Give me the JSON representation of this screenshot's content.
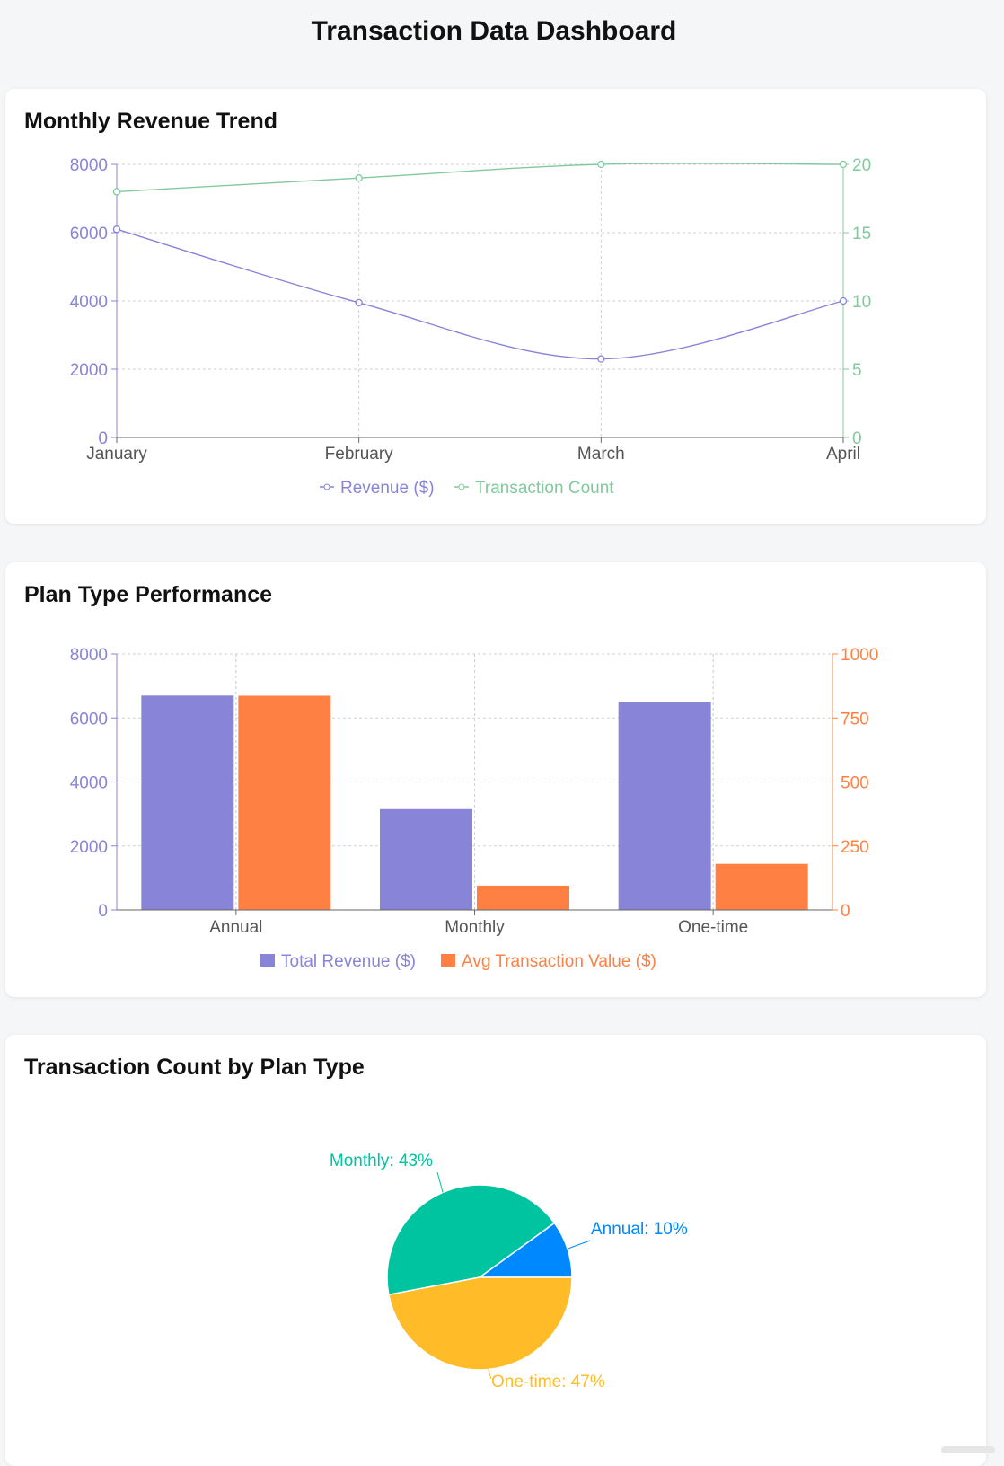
{
  "page": {
    "title": "Transaction Data Dashboard"
  },
  "colors": {
    "revenue": "#8884d8",
    "count": "#82ca9d",
    "avg": "#ff8042",
    "pie": [
      "#0088fe",
      "#00c49f",
      "#ffbb28"
    ]
  },
  "charts": {
    "trend": {
      "title": "Monthly Revenue Trend"
    },
    "plan": {
      "title": "Plan Type Performance"
    },
    "pie": {
      "title": "Transaction Count by Plan Type"
    }
  },
  "chart_data": [
    {
      "type": "line",
      "title": "Monthly Revenue Trend",
      "categories": [
        "January",
        "February",
        "March",
        "April"
      ],
      "series": [
        {
          "name": "Revenue ($)",
          "axis": "left",
          "values": [
            6100,
            3950,
            2300,
            4000
          ]
        },
        {
          "name": "Transaction Count",
          "axis": "right",
          "values": [
            18,
            19,
            20,
            20
          ]
        }
      ],
      "y_left": {
        "lim": [
          0,
          8000
        ],
        "ticks": [
          0,
          2000,
          4000,
          6000,
          8000
        ]
      },
      "y_right": {
        "lim": [
          0,
          20
        ],
        "ticks": [
          0,
          5,
          10,
          15,
          20
        ]
      },
      "grid": true,
      "legend": "bottom"
    },
    {
      "type": "bar",
      "title": "Plan Type Performance",
      "categories": [
        "Annual",
        "Monthly",
        "One-time"
      ],
      "series": [
        {
          "name": "Total Revenue ($)",
          "axis": "left",
          "values": [
            6700,
            3150,
            6500
          ]
        },
        {
          "name": "Avg Transaction Value ($)",
          "axis": "right",
          "values": [
            837,
            95,
            180
          ]
        }
      ],
      "y_left": {
        "lim": [
          0,
          8000
        ],
        "ticks": [
          0,
          2000,
          4000,
          6000,
          8000
        ]
      },
      "y_right": {
        "lim": [
          0,
          1000
        ],
        "ticks": [
          0,
          250,
          500,
          750,
          1000
        ]
      },
      "grid": true,
      "legend": "bottom"
    },
    {
      "type": "pie",
      "title": "Transaction Count by Plan Type",
      "slices": [
        {
          "label": "Annual",
          "percent": 10,
          "text": "Annual: 10%"
        },
        {
          "label": "Monthly",
          "percent": 43,
          "text": "Monthly: 43%"
        },
        {
          "label": "One-time",
          "percent": 47,
          "text": "One-time: 47%"
        }
      ]
    }
  ]
}
